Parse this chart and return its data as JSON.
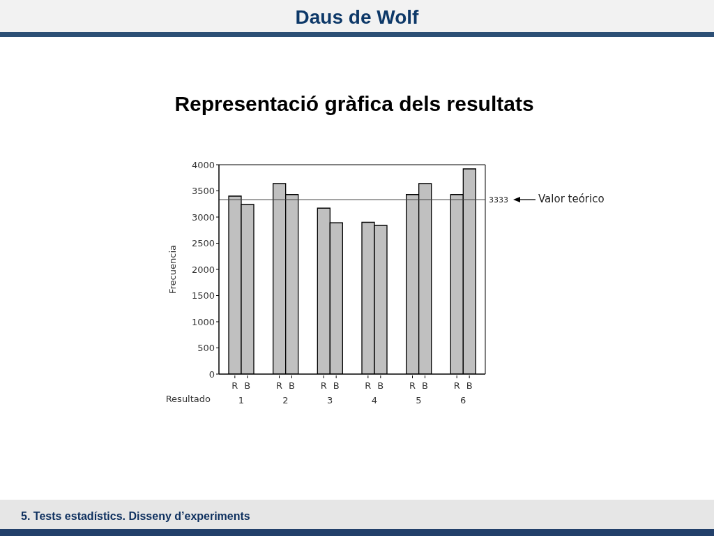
{
  "chart_data": {
    "type": "bar",
    "title": "Daus de Wolf",
    "subtitle": "Representació gràfica dels resultats",
    "xlabel": "Resultado",
    "ylabel": "Frecuencia",
    "categories": [
      "1",
      "2",
      "3",
      "4",
      "5",
      "6"
    ],
    "series": [
      {
        "name": "R",
        "color": "#c0c0c0",
        "values": [
          3400,
          3640,
          3170,
          2900,
          3430,
          3430
        ]
      },
      {
        "name": "B",
        "color": "#c0c0c0",
        "values": [
          3240,
          3430,
          2890,
          2840,
          3640,
          3920
        ]
      }
    ],
    "ylim": [
      0,
      4000
    ],
    "yticks": [
      0,
      500,
      1000,
      1500,
      2000,
      2500,
      3000,
      3500,
      4000
    ],
    "ref_lines": [
      {
        "axis": "y",
        "value": 3333,
        "label": "3333"
      }
    ],
    "annotations": [
      "Valor teórico",
      "5. Tests estadístics. Disseny d’experiments"
    ]
  }
}
